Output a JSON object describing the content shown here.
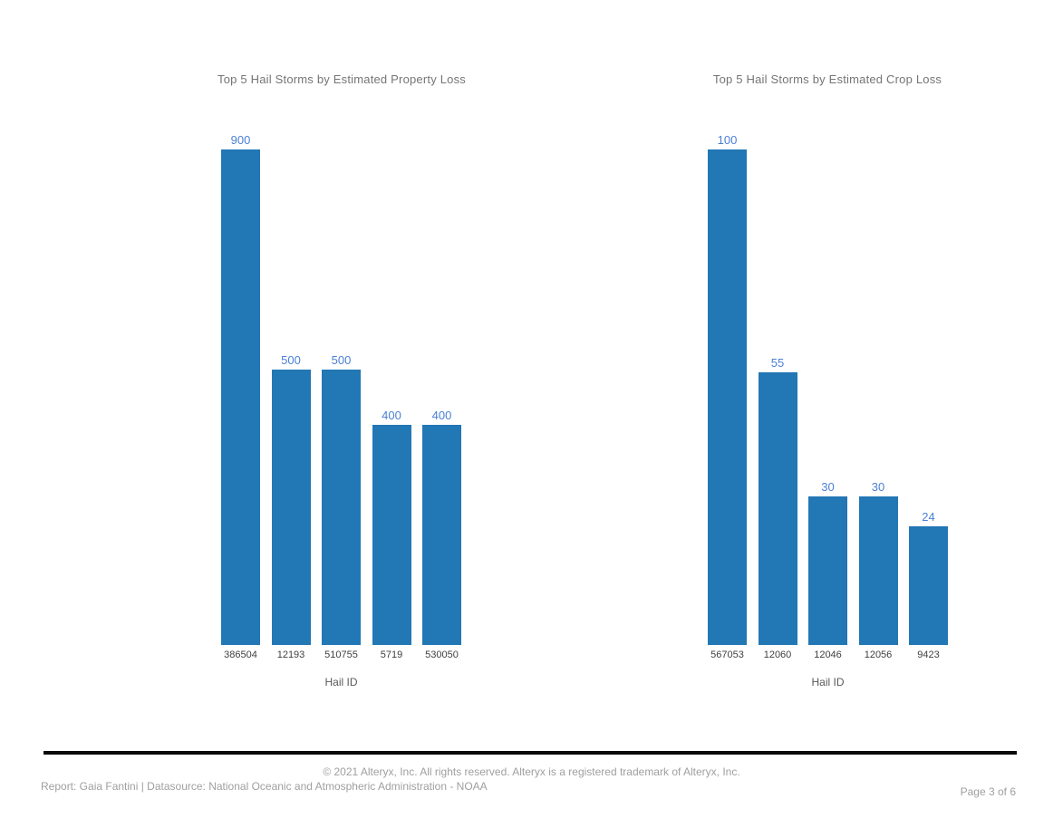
{
  "page": {
    "background_color": "#ffffff"
  },
  "chart_data": [
    {
      "type": "bar",
      "title": "Top 5 Hail Storms by Estimated Property Loss",
      "xlabel": "Hail ID",
      "ylabel": "",
      "categories": [
        "386504",
        "12193",
        "510755",
        "5719",
        "530050"
      ],
      "values": [
        900,
        500,
        500,
        400,
        400
      ],
      "ylim": [
        0,
        900
      ],
      "grid": false,
      "legend_position": "none",
      "value_labels_shown": true,
      "bar_color": "#2277b5",
      "value_label_color": "#4b80d5"
    },
    {
      "type": "bar",
      "title": "Top 5 Hail Storms by Estimated Crop Loss",
      "xlabel": "Hail ID",
      "ylabel": "",
      "categories": [
        "567053",
        "12060",
        "12046",
        "12056",
        "9423"
      ],
      "values": [
        100,
        55,
        30,
        30,
        24
      ],
      "ylim": [
        0,
        100
      ],
      "grid": false,
      "legend_position": "none",
      "value_labels_shown": true,
      "bar_color": "#2277b5",
      "value_label_color": "#4b80d5"
    }
  ],
  "footer": {
    "copyright": "© 2021 Alteryx, Inc. All rights reserved. Alteryx is a registered trademark of Alteryx, Inc.",
    "report_line": "Report: Gaia Fantini | Datasource: National Oceanic and Atmospheric Administration - NOAA",
    "page_indicator": "Page 3 of 6"
  },
  "colors": {
    "bar": "#2277b5",
    "value_label": "#4b80d5",
    "chart_title": "#757575",
    "tick_label": "#404040",
    "axis_label": "#595959",
    "footer_text": "#9f9f9f",
    "divider": "#0a0a0a"
  }
}
